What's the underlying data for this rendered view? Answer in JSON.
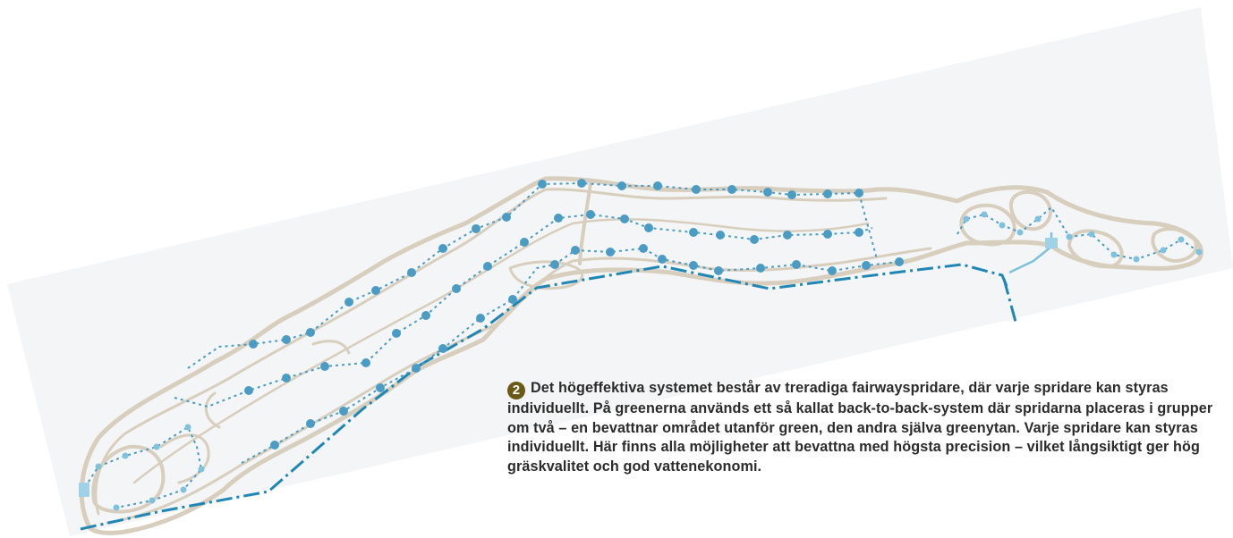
{
  "colors": {
    "background_band": "#f4f5f6",
    "turf_outline": "#d8cebd",
    "sprinkler_dark": "#4a9cc4",
    "sprinkler_light": "#7ec2de",
    "main_pipe": "#1f87b5",
    "caption_text": "#2b2b2b",
    "badge": "#6b5a16"
  },
  "caption": {
    "badge": "2",
    "text": "Det högeffektiva systemet består av treradiga fairwayspridare, där varje spridare kan styras individuellt. På greenerna används ett så kallat back-to-back-system där spridarna placeras i grupper om två – en bevattnar området utanför green, den andra själva greenytan. Varje spridare kan styras individuellt. Här finns alla möjligheter att bevattna med högsta precision – vilket långsiktigt ger hög gräskvalitet och god vattenekonomi."
  },
  "icons": {
    "sprinkler": "sprinkler-dot-icon",
    "pump": "pump-station-icon"
  }
}
